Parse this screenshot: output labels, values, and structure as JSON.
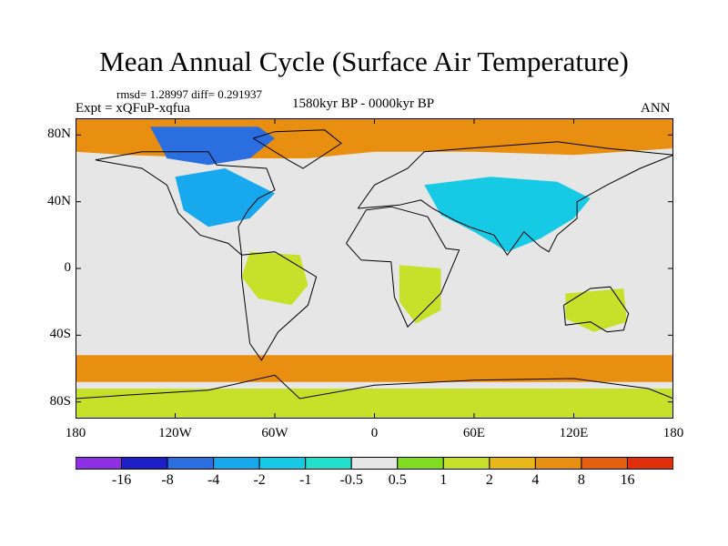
{
  "map": {
    "title": "Mean Annual Cycle (Surface Air Temperature)",
    "stats_label": "rmsd= 1.28997 diff= 0.291937",
    "experiment_label": "Expt = xQFuP-xqfua",
    "period_label": "1580kyr BP - 0000kyr BP",
    "season_label": "ANN",
    "x_axis": {
      "range": [
        -180,
        180
      ],
      "ticks": [
        -180,
        -120,
        -60,
        0,
        60,
        120,
        180
      ],
      "tick_labels": [
        "180",
        "120W",
        "60W",
        "0",
        "60E",
        "120E",
        "180"
      ]
    },
    "y_axis": {
      "range": [
        -90,
        90
      ],
      "ticks": [
        80,
        40,
        0,
        -40,
        -80
      ],
      "tick_labels": [
        "80N",
        "40N",
        "0",
        "40S",
        "80S"
      ]
    },
    "regions": [
      {
        "name": "arctic-warming",
        "bin": 10,
        "points": [
          [
            -180,
            90
          ],
          [
            180,
            90
          ],
          [
            180,
            72
          ],
          [
            120,
            68
          ],
          [
            60,
            70
          ],
          [
            0,
            70
          ],
          [
            -40,
            66
          ],
          [
            -90,
            66
          ],
          [
            -150,
            68
          ],
          [
            -180,
            70
          ]
        ]
      },
      {
        "name": "canadian-arctic-cooling",
        "bin": 2,
        "points": [
          [
            -135,
            85
          ],
          [
            -70,
            85
          ],
          [
            -60,
            78
          ],
          [
            -75,
            66
          ],
          [
            -100,
            62
          ],
          [
            -125,
            66
          ]
        ]
      },
      {
        "name": "eurasia-cooling",
        "bin": 4,
        "points": [
          [
            30,
            50
          ],
          [
            70,
            55
          ],
          [
            110,
            52
          ],
          [
            130,
            42
          ],
          [
            120,
            30
          ],
          [
            100,
            18
          ],
          [
            80,
            10
          ],
          [
            60,
            22
          ],
          [
            40,
            32
          ]
        ]
      },
      {
        "name": "southern-ocean-warming",
        "bin": 10,
        "points": [
          [
            -180,
            -52
          ],
          [
            180,
            -52
          ],
          [
            180,
            -68
          ],
          [
            -180,
            -68
          ]
        ]
      },
      {
        "name": "antarctic-mixed",
        "bin": 8,
        "points": [
          [
            -180,
            -72
          ],
          [
            180,
            -72
          ],
          [
            180,
            -90
          ],
          [
            -180,
            -90
          ]
        ]
      },
      {
        "name": "amazon-warming",
        "bin": 8,
        "points": [
          [
            -75,
            10
          ],
          [
            -45,
            8
          ],
          [
            -40,
            -10
          ],
          [
            -50,
            -22
          ],
          [
            -70,
            -18
          ],
          [
            -80,
            -5
          ]
        ]
      },
      {
        "name": "africa-warming",
        "bin": 8,
        "points": [
          [
            15,
            2
          ],
          [
            40,
            0
          ],
          [
            40,
            -25
          ],
          [
            25,
            -33
          ],
          [
            15,
            -20
          ]
        ]
      },
      {
        "name": "australia-warming",
        "bin": 8,
        "points": [
          [
            115,
            -15
          ],
          [
            150,
            -12
          ],
          [
            152,
            -32
          ],
          [
            132,
            -38
          ],
          [
            115,
            -30
          ]
        ]
      },
      {
        "name": "north-america-cooling",
        "bin": 3,
        "points": [
          [
            -120,
            55
          ],
          [
            -90,
            60
          ],
          [
            -60,
            45
          ],
          [
            -75,
            30
          ],
          [
            -100,
            25
          ],
          [
            -115,
            35
          ]
        ]
      }
    ],
    "coastlines": [
      {
        "name": "north-america-coast",
        "points": [
          [
            -168,
            65
          ],
          [
            -140,
            60
          ],
          [
            -125,
            50
          ],
          [
            -118,
            33
          ],
          [
            -105,
            20
          ],
          [
            -88,
            15
          ],
          [
            -80,
            8
          ],
          [
            -82,
            25
          ],
          [
            -76,
            35
          ],
          [
            -70,
            42
          ],
          [
            -60,
            47
          ],
          [
            -65,
            60
          ],
          [
            -95,
            62
          ],
          [
            -100,
            70
          ],
          [
            -140,
            70
          ],
          [
            -168,
            65
          ]
        ]
      },
      {
        "name": "south-america-coast",
        "points": [
          [
            -80,
            8
          ],
          [
            -60,
            10
          ],
          [
            -35,
            -5
          ],
          [
            -40,
            -22
          ],
          [
            -58,
            -38
          ],
          [
            -68,
            -55
          ],
          [
            -75,
            -45
          ],
          [
            -80,
            -5
          ],
          [
            -80,
            8
          ]
        ]
      },
      {
        "name": "africa-coast",
        "points": [
          [
            -17,
            15
          ],
          [
            -5,
            35
          ],
          [
            10,
            37
          ],
          [
            32,
            31
          ],
          [
            43,
            12
          ],
          [
            51,
            11
          ],
          [
            40,
            -15
          ],
          [
            20,
            -35
          ],
          [
            12,
            -17
          ],
          [
            10,
            4
          ],
          [
            -8,
            5
          ],
          [
            -17,
            15
          ]
        ]
      },
      {
        "name": "eurasia-coast",
        "points": [
          [
            -10,
            36
          ],
          [
            0,
            50
          ],
          [
            10,
            55
          ],
          [
            20,
            60
          ],
          [
            30,
            70
          ],
          [
            70,
            73
          ],
          [
            110,
            76
          ],
          [
            140,
            72
          ],
          [
            180,
            68
          ],
          [
            160,
            60
          ],
          [
            140,
            50
          ],
          [
            122,
            40
          ],
          [
            122,
            30
          ],
          [
            110,
            20
          ],
          [
            105,
            10
          ],
          [
            100,
            13
          ],
          [
            90,
            22
          ],
          [
            80,
            8
          ],
          [
            72,
            20
          ],
          [
            57,
            25
          ],
          [
            48,
            29
          ],
          [
            35,
            36
          ],
          [
            28,
            41
          ],
          [
            15,
            38
          ],
          [
            -10,
            36
          ]
        ]
      },
      {
        "name": "australia-coast",
        "points": [
          [
            114,
            -22
          ],
          [
            130,
            -12
          ],
          [
            142,
            -11
          ],
          [
            153,
            -27
          ],
          [
            150,
            -37
          ],
          [
            140,
            -38
          ],
          [
            130,
            -32
          ],
          [
            115,
            -34
          ],
          [
            114,
            -22
          ]
        ]
      },
      {
        "name": "greenland-coast",
        "points": [
          [
            -73,
            78
          ],
          [
            -60,
            82
          ],
          [
            -30,
            83
          ],
          [
            -20,
            75
          ],
          [
            -43,
            60
          ],
          [
            -52,
            65
          ],
          [
            -73,
            78
          ]
        ]
      },
      {
        "name": "antarctica-coast",
        "points": [
          [
            -180,
            -78
          ],
          [
            -150,
            -76
          ],
          [
            -100,
            -73
          ],
          [
            -60,
            -64
          ],
          [
            -45,
            -78
          ],
          [
            0,
            -70
          ],
          [
            60,
            -67
          ],
          [
            120,
            -66
          ],
          [
            165,
            -72
          ],
          [
            180,
            -78
          ]
        ]
      }
    ]
  },
  "colorbar": {
    "colors": [
      "#8e2fe6",
      "#1f1fc8",
      "#2a6ee0",
      "#18a8ee",
      "#16c9e4",
      "#22e0cc",
      "#e6e6e6",
      "#80dd20",
      "#c7e12a",
      "#e8b818",
      "#e88e10",
      "#e46010",
      "#e02e0a"
    ],
    "tick_labels": [
      "-16",
      "-8",
      "-4",
      "-2",
      "-1",
      "-0.5",
      "0.5",
      "1",
      "2",
      "4",
      "8",
      "16"
    ]
  }
}
